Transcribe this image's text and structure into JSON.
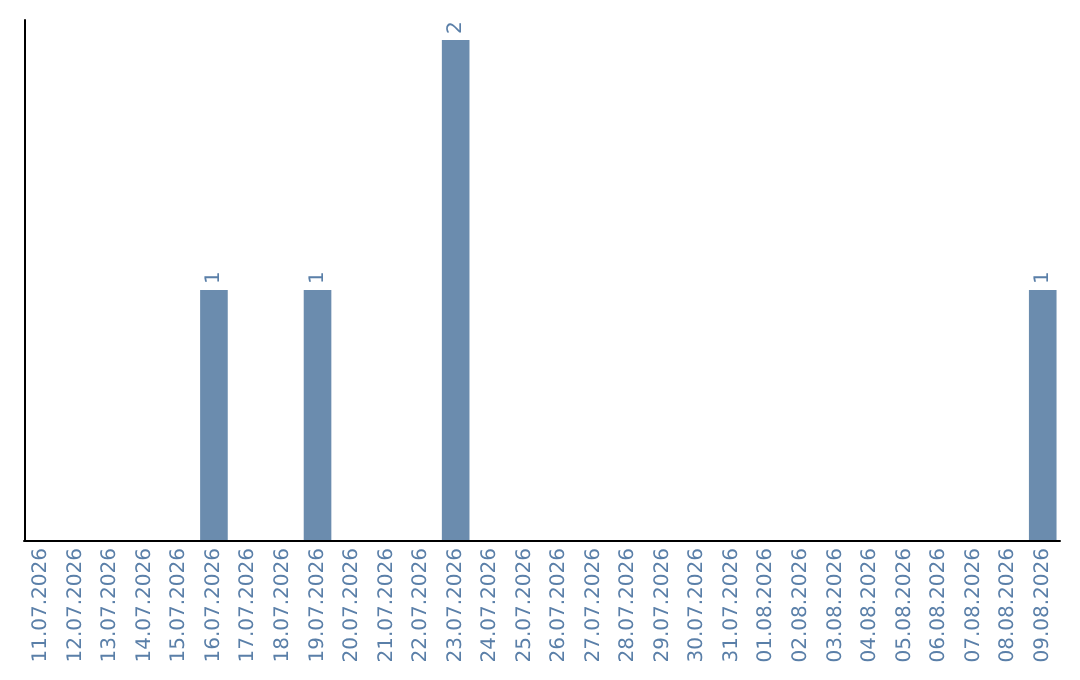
{
  "chart_data": {
    "type": "bar",
    "categories": [
      "11.07.2026",
      "12.07.2026",
      "13.07.2026",
      "14.07.2026",
      "15.07.2026",
      "16.07.2026",
      "17.07.2026",
      "18.07.2026",
      "19.07.2026",
      "20.07.2026",
      "21.07.2026",
      "22.07.2026",
      "23.07.2026",
      "24.07.2026",
      "25.07.2026",
      "26.07.2026",
      "27.07.2026",
      "28.07.2026",
      "29.07.2026",
      "30.07.2026",
      "31.07.2026",
      "01.08.2026",
      "02.08.2026",
      "03.08.2026",
      "04.08.2026",
      "05.08.2026",
      "06.08.2026",
      "07.08.2026",
      "08.08.2026",
      "09.08.2026"
    ],
    "values": [
      0,
      0,
      0,
      0,
      0,
      1,
      0,
      0,
      1,
      0,
      0,
      0,
      2,
      0,
      0,
      0,
      0,
      0,
      0,
      0,
      0,
      0,
      0,
      0,
      0,
      0,
      0,
      0,
      0,
      1
    ],
    "value_labels": [
      null,
      null,
      null,
      null,
      null,
      "1",
      null,
      null,
      "1",
      null,
      null,
      null,
      "2",
      null,
      null,
      null,
      null,
      null,
      null,
      null,
      null,
      null,
      null,
      null,
      null,
      null,
      null,
      null,
      null,
      "1"
    ],
    "color": "#6b8cae",
    "grid": false
  }
}
